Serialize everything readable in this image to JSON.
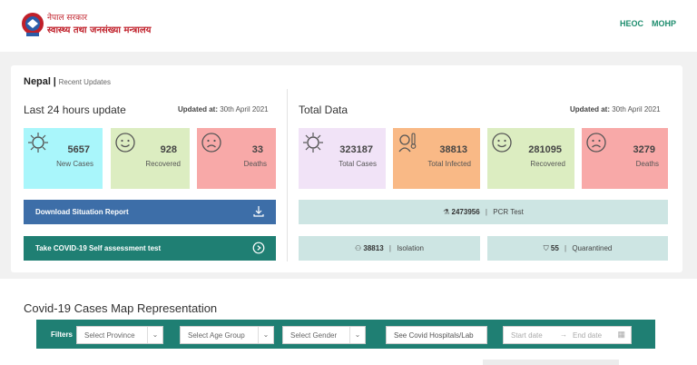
{
  "header": {
    "brand_line1": "नेपाल सरकार",
    "brand_line2": "स्वास्थ्य तथा जनसंख्या मन्त्रालय",
    "nav": [
      "HEOC",
      "MOHP"
    ]
  },
  "breadcrumb": {
    "country": "Nepal",
    "separator": "|",
    "subtitle": "Recent Updates"
  },
  "last24": {
    "title": "Last 24 hours update",
    "updated_label": "Updated at:",
    "updated_value": "30th April 2021",
    "stats": [
      {
        "value": "5657",
        "label": "New Cases",
        "color": "#a9f6fb",
        "icon": "virus-icon"
      },
      {
        "value": "928",
        "label": "Recovered",
        "color": "#dcedc1",
        "icon": "smile-icon"
      },
      {
        "value": "33",
        "label": "Deaths",
        "color": "#f8a9a8",
        "icon": "sad-face-icon"
      }
    ],
    "download_label": "Download Situation Report",
    "assessment_label": "Take COVID-19 Self assessment test"
  },
  "total": {
    "title": "Total Data",
    "updated_label": "Updated at:",
    "updated_value": "30th April 2021",
    "stats": [
      {
        "value": "323187",
        "label": "Total Cases",
        "color": "#f1e3f7",
        "icon": "virus-icon"
      },
      {
        "value": "38813",
        "label": "Total Infected",
        "color": "#f9b986",
        "icon": "thermometer-patient-icon"
      },
      {
        "value": "281095",
        "label": "Recovered",
        "color": "#dcedc1",
        "icon": "smile-icon"
      },
      {
        "value": "3279",
        "label": "Deaths",
        "color": "#f8a9a8",
        "icon": "sad-face-icon"
      }
    ],
    "pcr_value": "2473956",
    "pcr_label": "PCR Test",
    "isolation_value": "38813",
    "isolation_label": "Isolation",
    "quarantine_value": "55",
    "quarantine_label": "Quarantined"
  },
  "map": {
    "title": "Covid-19 Cases Map Representation",
    "filters_label": "Filters",
    "province_placeholder": "Select Province",
    "age_placeholder": "Select Age Group",
    "gender_placeholder": "Select Gender",
    "hospitals_button": "See Covid Hospitals/Lab",
    "start_date_placeholder": "Start date",
    "end_date_placeholder": "End date"
  },
  "colors": {
    "primary_blue": "#3d6ea8",
    "teal": "#1f7f73",
    "accent_green": "#1e8d6e",
    "brand_red": "#c0202a"
  }
}
